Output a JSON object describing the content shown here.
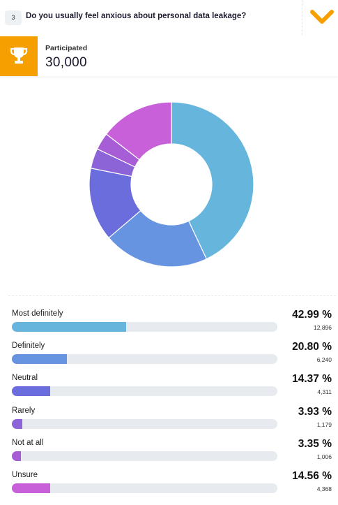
{
  "question": {
    "number": "3",
    "text": "Do you usually feel anxious about personal data leakage?"
  },
  "participation": {
    "label": "Participated",
    "value": "30,000"
  },
  "colors": {
    "accent": "#f5a000"
  },
  "chart_data": {
    "type": "pie",
    "categories": [
      "Most definitely",
      "Definitely",
      "Neutral",
      "Rarely",
      "Not at all",
      "Unsure"
    ],
    "values": [
      42.99,
      20.8,
      14.37,
      3.93,
      3.35,
      14.56
    ],
    "colors": [
      "#66b5dd",
      "#6694e0",
      "#6a6ddb",
      "#8c64d8",
      "#a65dd6",
      "#c860da"
    ]
  },
  "results": [
    {
      "label": "Most definitely",
      "percent": "42.99 %",
      "count": "12,896",
      "value": 42.99,
      "color": "#66b5dd"
    },
    {
      "label": "Definitely",
      "percent": "20.80 %",
      "count": "6,240",
      "value": 20.8,
      "color": "#6694e0"
    },
    {
      "label": "Neutral",
      "percent": "14.37 %",
      "count": "4,311",
      "value": 14.37,
      "color": "#6a6ddb"
    },
    {
      "label": "Rarely",
      "percent": "3.93 %",
      "count": "1,179",
      "value": 3.93,
      "color": "#8c64d8"
    },
    {
      "label": "Not at all",
      "percent": "3.35 %",
      "count": "1,006",
      "value": 3.35,
      "color": "#a65dd6"
    },
    {
      "label": "Unsure",
      "percent": "14.56 %",
      "count": "4,368",
      "value": 14.56,
      "color": "#c860da"
    }
  ]
}
